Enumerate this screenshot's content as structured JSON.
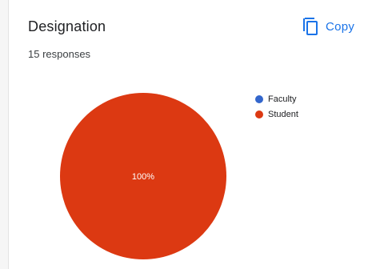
{
  "card": {
    "title": "Designation",
    "responses": "15 responses",
    "copy_label": "Copy",
    "copy_icon": "copy-icon"
  },
  "colors": {
    "accent": "#1a73e8",
    "faculty": "#3366cc",
    "student": "#dc3912"
  },
  "chart_data": {
    "type": "pie",
    "title": "Designation",
    "categories": [
      "Faculty",
      "Student"
    ],
    "values": [
      0,
      100
    ],
    "unit": "%",
    "slice_labels": [
      "",
      "100%"
    ],
    "colors": [
      "#3366cc",
      "#dc3912"
    ],
    "legend": "right"
  }
}
